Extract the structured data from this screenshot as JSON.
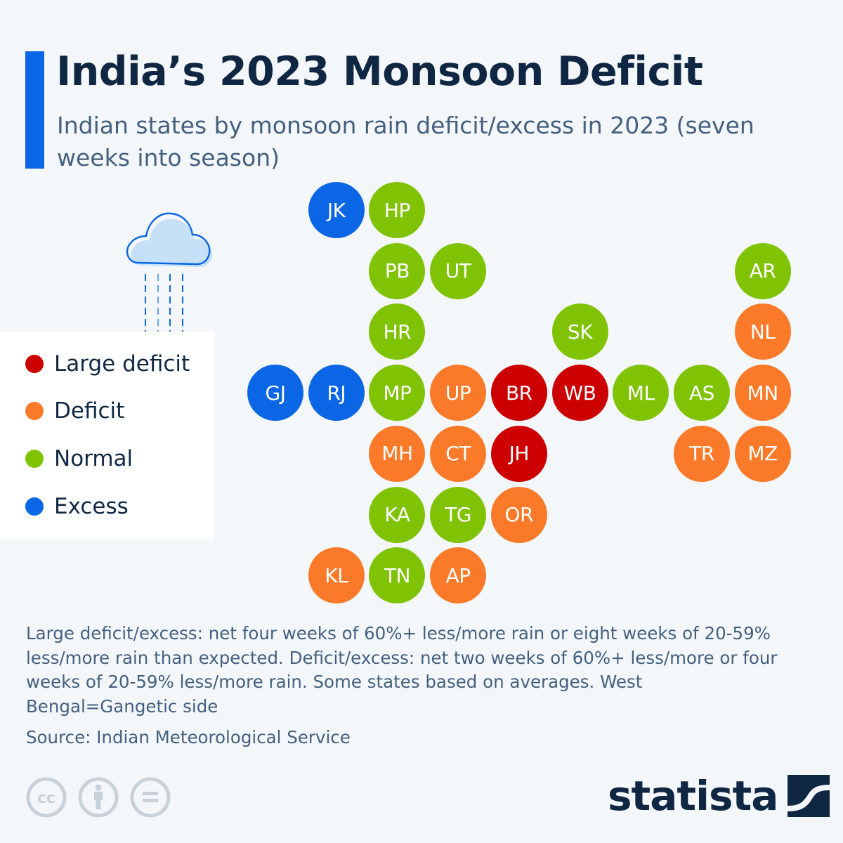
{
  "header": {
    "title": "India’s 2023 Monsoon Deficit",
    "subtitle": "Indian states by monsoon rain deficit/excess in 2023 (seven weeks into season)"
  },
  "legend": {
    "items": [
      {
        "key": "large_deficit",
        "label": "Large deficit",
        "color": "#cc0000"
      },
      {
        "key": "deficit",
        "label": "Deficit",
        "color": "#fa7a29"
      },
      {
        "key": "normal",
        "label": "Normal",
        "color": "#80c305"
      },
      {
        "key": "excess",
        "label": "Excess",
        "color": "#0a66e4"
      }
    ]
  },
  "chart_data": {
    "type": "tile-map",
    "title": "India’s 2023 Monsoon Deficit",
    "subtitle": "Indian states by monsoon rain deficit/excess in 2023 (seven weeks into season)",
    "categories": [
      "Large deficit",
      "Deficit",
      "Normal",
      "Excess"
    ],
    "colors": {
      "Large deficit": "#cc0000",
      "Deficit": "#fa7a29",
      "Normal": "#80c305",
      "Excess": "#0a66e4"
    },
    "legend_position": "left",
    "states": [
      {
        "code": "JK",
        "status": "Excess",
        "row": 0,
        "col": 1
      },
      {
        "code": "HP",
        "status": "Normal",
        "row": 0,
        "col": 2
      },
      {
        "code": "PB",
        "status": "Normal",
        "row": 1,
        "col": 2
      },
      {
        "code": "UT",
        "status": "Normal",
        "row": 1,
        "col": 3
      },
      {
        "code": "AR",
        "status": "Normal",
        "row": 1,
        "col": 8
      },
      {
        "code": "HR",
        "status": "Normal",
        "row": 2,
        "col": 2
      },
      {
        "code": "SK",
        "status": "Normal",
        "row": 2,
        "col": 5
      },
      {
        "code": "NL",
        "status": "Deficit",
        "row": 2,
        "col": 8
      },
      {
        "code": "GJ",
        "status": "Excess",
        "row": 3,
        "col": 0
      },
      {
        "code": "RJ",
        "status": "Excess",
        "row": 3,
        "col": 1
      },
      {
        "code": "MP",
        "status": "Normal",
        "row": 3,
        "col": 2
      },
      {
        "code": "UP",
        "status": "Deficit",
        "row": 3,
        "col": 3
      },
      {
        "code": "BR",
        "status": "Large deficit",
        "row": 3,
        "col": 4
      },
      {
        "code": "WB",
        "status": "Large deficit",
        "row": 3,
        "col": 5
      },
      {
        "code": "ML",
        "status": "Normal",
        "row": 3,
        "col": 6
      },
      {
        "code": "AS",
        "status": "Normal",
        "row": 3,
        "col": 7
      },
      {
        "code": "MN",
        "status": "Deficit",
        "row": 3,
        "col": 8
      },
      {
        "code": "MH",
        "status": "Deficit",
        "row": 4,
        "col": 2
      },
      {
        "code": "CT",
        "status": "Deficit",
        "row": 4,
        "col": 3
      },
      {
        "code": "JH",
        "status": "Large deficit",
        "row": 4,
        "col": 4
      },
      {
        "code": "TR",
        "status": "Deficit",
        "row": 4,
        "col": 7
      },
      {
        "code": "MZ",
        "status": "Deficit",
        "row": 4,
        "col": 8
      },
      {
        "code": "KA",
        "status": "Normal",
        "row": 5,
        "col": 2
      },
      {
        "code": "TG",
        "status": "Normal",
        "row": 5,
        "col": 3
      },
      {
        "code": "OR",
        "status": "Deficit",
        "row": 5,
        "col": 4
      },
      {
        "code": "KL",
        "status": "Deficit",
        "row": 6,
        "col": 1
      },
      {
        "code": "TN",
        "status": "Normal",
        "row": 6,
        "col": 2
      },
      {
        "code": "AP",
        "status": "Deficit",
        "row": 6,
        "col": 3
      }
    ]
  },
  "footer": {
    "notes": "Large deficit/excess: net four weeks of 60%+ less/more rain or eight weeks of 20-59% less/more rain than expected. Deficit/excess: net two weeks of 60%+ less/more or four weeks of 20-59% less/more rain. Some states based on averages. West Bengal=Gangetic side",
    "source": "Source: Indian Meteorological Service",
    "license_icons": [
      "cc-icon",
      "attribution-icon",
      "no-derivatives-icon"
    ],
    "brand": "statista"
  },
  "theme": {
    "accent": "#0a66e4",
    "title_color": "#0f2742",
    "text_color": "#44607f",
    "background": "#f4f7fa"
  }
}
